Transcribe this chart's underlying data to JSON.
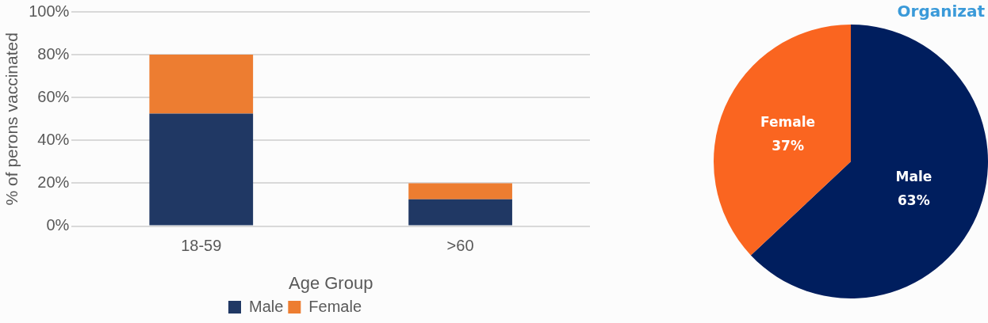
{
  "chart_data": [
    {
      "type": "bar",
      "stacked": true,
      "categories": [
        "18-59",
        ">60"
      ],
      "xlabel": "Age Group",
      "ylabel": "% of perons vaccinated",
      "ylim": [
        0,
        100
      ],
      "yticks": [
        {
          "value": 0,
          "label": "0%"
        },
        {
          "value": 20,
          "label": "20%"
        },
        {
          "value": 40,
          "label": "40%"
        },
        {
          "value": 60,
          "label": "60%"
        },
        {
          "value": 80,
          "label": "80%"
        },
        {
          "value": 100,
          "label": "100%"
        }
      ],
      "grid": "y",
      "legend": "bottom",
      "series": [
        {
          "name": "Male",
          "color": "#203864",
          "values": [
            52.5,
            12.5
          ]
        },
        {
          "name": "Female",
          "color": "#ed7d31",
          "values": [
            27.5,
            7.5
          ]
        }
      ]
    },
    {
      "type": "pie",
      "title": "Organizat",
      "categories": [
        "Male",
        "Female"
      ],
      "values": [
        63,
        37
      ],
      "colors": [
        "#001e5e",
        "#fa6520"
      ],
      "value_labels": [
        "63%",
        "37%"
      ],
      "legend": false
    }
  ]
}
